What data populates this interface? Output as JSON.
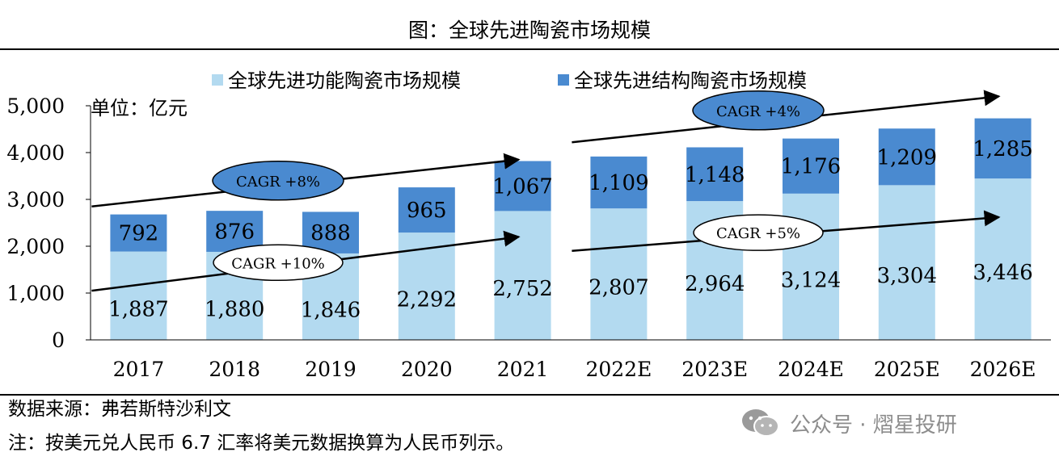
{
  "title": "图：全球先进陶瓷市场规模",
  "source": "数据来源：弗若斯特沙利文",
  "note": "注：按美元兑人民币 6.7 汇率将美元数据换算为人民币列示。",
  "watermark": "公众号 · 熠星投研",
  "colors": {
    "functional": "#b3daf0",
    "structural": "#4a8ad0",
    "ellipse": "#4a8ad0",
    "ellipse_light": "#ffffff"
  },
  "chart_data": {
    "type": "bar",
    "stacked": true,
    "unit_label": "单位：亿元",
    "categories": [
      "2017",
      "2018",
      "2019",
      "2020",
      "2021",
      "2022E",
      "2023E",
      "2024E",
      "2025E",
      "2026E"
    ],
    "series": [
      {
        "name": "全球先进功能陶瓷市场规模",
        "values": [
          1887,
          1880,
          1846,
          2292,
          2752,
          2807,
          2964,
          3124,
          3304,
          3446
        ],
        "labels": [
          "1,887",
          "1,880",
          "1,846",
          "2,292",
          "2,752",
          "2,807",
          "2,964",
          "3,124",
          "3,304",
          "3,446"
        ]
      },
      {
        "name": "全球先进结构陶瓷市场规模",
        "values": [
          792,
          876,
          888,
          965,
          1067,
          1109,
          1148,
          1176,
          1209,
          1285
        ],
        "labels": [
          "792",
          "876",
          "888",
          "965",
          "1,067",
          "1,109",
          "1,148",
          "1,176",
          "1,209",
          "1,285"
        ]
      }
    ],
    "ylim": [
      0,
      5000
    ],
    "yticks": [
      0,
      1000,
      2000,
      3000,
      4000,
      5000
    ],
    "ytick_labels": [
      "0",
      "1,000",
      "2,000",
      "3,000",
      "4,000",
      "5,000"
    ],
    "legend_position": "top",
    "annotations": [
      {
        "text": "CAGR +8%",
        "style": "dark",
        "from": {
          "x": 0,
          "y": 2850
        },
        "to": {
          "x": 4,
          "y": 3850
        },
        "label_at": {
          "x": 2,
          "y": 3400
        }
      },
      {
        "text": "CAGR +10%",
        "style": "light",
        "from": {
          "x": 0,
          "y": 1050
        },
        "to": {
          "x": 4,
          "y": 2200
        },
        "label_at": {
          "x": 2,
          "y": 1650
        }
      },
      {
        "text": "CAGR +4%",
        "style": "dark",
        "from": {
          "x": 5,
          "y": 4220
        },
        "to": {
          "x": 9,
          "y": 5200
        },
        "label_at": {
          "x": 7,
          "y": 4900
        }
      },
      {
        "text": "CAGR +5%",
        "style": "light",
        "from": {
          "x": 5,
          "y": 1900
        },
        "to": {
          "x": 9,
          "y": 2620
        },
        "label_at": {
          "x": 7,
          "y": 2290
        }
      }
    ]
  }
}
